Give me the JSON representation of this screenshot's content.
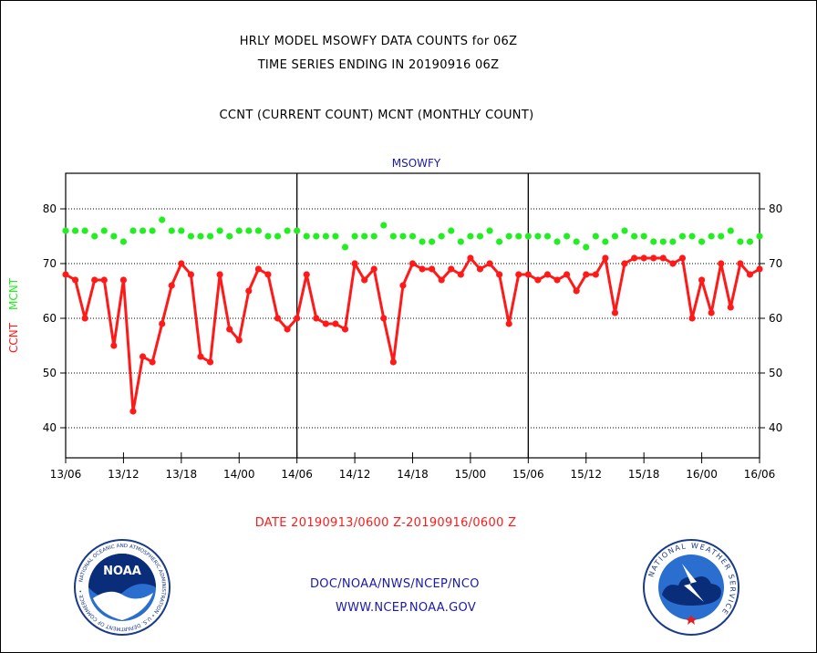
{
  "header": {
    "line1": "HRLY MODEL MSOWFY DATA COUNTS for 06Z",
    "line2": "TIME SERIES ENDING IN 20190916 06Z",
    "line3": "CCNT (CURRENT COUNT) MCNT (MONTHLY COUNT)"
  },
  "footer": {
    "date_range": "DATE 20190913/0600 Z-20190916/0600 Z",
    "org": "DOC/NOAA/NWS/NCEP/NCO",
    "url": "WWW.NCEP.NOAA.GOV"
  },
  "logos": {
    "noaa_text": "NOAA",
    "noaa_ring": "NATIONAL OCEANIC AND ATMOSPHERIC ADMINISTRATION • U.S. DEPARTMENT OF COMMERCE •",
    "nws_ring": "NATIONAL WEATHER SERVICE"
  },
  "colors": {
    "ccnt": "#ff1a1a",
    "mcnt": "#22ee22",
    "title_blue": "#1a1aa8"
  },
  "chart_data": {
    "type": "line",
    "title": "MSOWFY",
    "ylabel_ccnt": "CCNT",
    "ylabel_mcnt": "MCNT",
    "ylim": [
      34.5,
      86.5
    ],
    "y_ticks": [
      40,
      50,
      60,
      70,
      80
    ],
    "x_tick_labels": [
      "13/06",
      "13/12",
      "13/18",
      "14/00",
      "14/06",
      "14/12",
      "14/18",
      "15/00",
      "15/06",
      "15/12",
      "15/18",
      "16/00",
      "16/06"
    ],
    "x_range_hours": [
      0,
      72
    ],
    "grid": true,
    "day_dividers_hours": [
      24,
      48
    ],
    "series": [
      {
        "name": "MCNT",
        "color": "#22ee22",
        "values": [
          76,
          76,
          76,
          75,
          76,
          75,
          74,
          76,
          76,
          76,
          78,
          76,
          76,
          75,
          75,
          75,
          76,
          75,
          76,
          76,
          76,
          75,
          75,
          76,
          76,
          75,
          75,
          75,
          75,
          73,
          75,
          75,
          75,
          77,
          75,
          75,
          75,
          74,
          74,
          75,
          76,
          74,
          75,
          75,
          76,
          74,
          75,
          75,
          75,
          75,
          75,
          74,
          75,
          74,
          73,
          75,
          74,
          75,
          76,
          75,
          75,
          74,
          74,
          74,
          75,
          75,
          74,
          75,
          75,
          76,
          74,
          74,
          75
        ]
      },
      {
        "name": "CCNT",
        "color": "#ff1a1a",
        "values": [
          68,
          67,
          60,
          67,
          67,
          55,
          67,
          43,
          53,
          52,
          59,
          66,
          70,
          68,
          53,
          52,
          68,
          58,
          56,
          65,
          69,
          68,
          60,
          58,
          60,
          68,
          60,
          59,
          59,
          58,
          70,
          67,
          69,
          60,
          52,
          66,
          70,
          69,
          69,
          67,
          69,
          68,
          71,
          69,
          70,
          68,
          59,
          68,
          68,
          67,
          68,
          67,
          68,
          65,
          68,
          68,
          71,
          61,
          70,
          71,
          71,
          71,
          71,
          70,
          71,
          60,
          67,
          61,
          70,
          62,
          70,
          68,
          69
        ]
      }
    ]
  }
}
